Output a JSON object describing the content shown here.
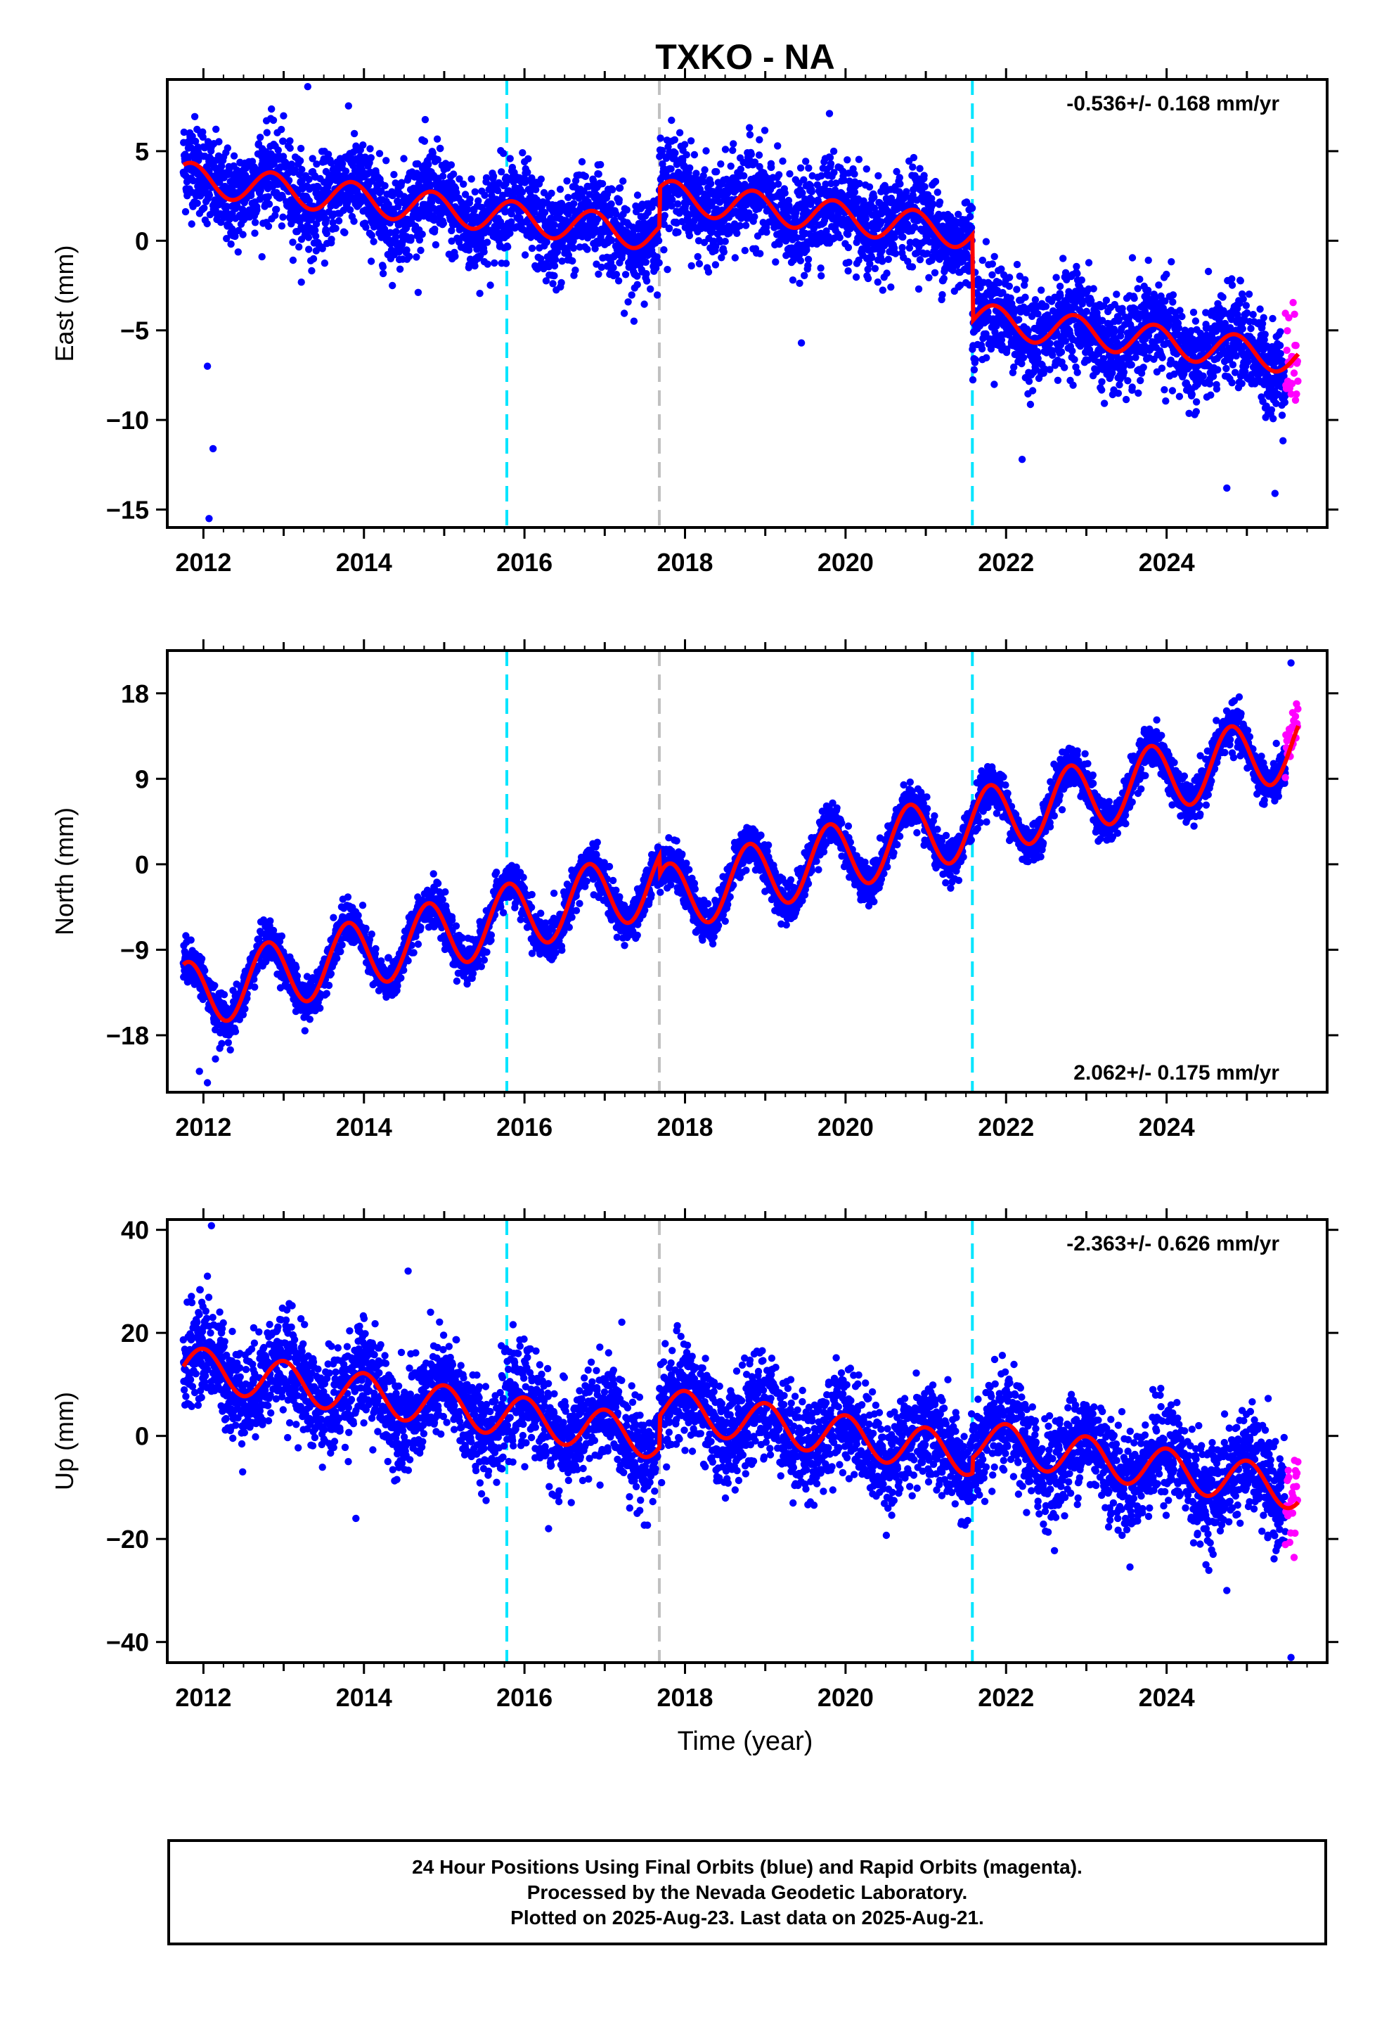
{
  "title": "TXKO - NA",
  "xlabel": "Time (year)",
  "colors": {
    "final": "#0000ff",
    "rapid": "#ff00ff",
    "model": "#ff0000",
    "equipment_change": "#00e5ff",
    "other_event": "#c0c0c0"
  },
  "footer": {
    "line1": "24 Hour Positions Using Final Orbits (blue) and Rapid Orbits (magenta).",
    "line2": "Processed by the Nevada Geodetic Laboratory.",
    "line3": "Plotted on 2025-Aug-23. Last data on 2025-Aug-21."
  },
  "chart_data": [
    {
      "type": "scatter",
      "component": "east",
      "ylabel": "East (mm)",
      "ylim": [
        -16,
        9
      ],
      "yticks": [
        -15,
        -10,
        -5,
        0,
        5
      ],
      "xlim": [
        2011.55,
        2026.0
      ],
      "xticks": [
        2012,
        2014,
        2016,
        2018,
        2020,
        2022,
        2024
      ],
      "rate_text": "-0.536+/- 0.168 mm/yr",
      "rate_position": "top-right",
      "events": [
        {
          "x": 2015.78,
          "kind": "equipment_change"
        },
        {
          "x": 2017.68,
          "kind": "other_event"
        },
        {
          "x": 2021.58,
          "kind": "equipment_change"
        }
      ],
      "model": {
        "offset": 3.5,
        "rate": -0.536,
        "seasonal_amp": 0.9,
        "phase": 0.6,
        "steps": [
          {
            "x": 2017.68,
            "dy": 2.2
          },
          {
            "x": 2021.58,
            "dy": -4.8
          }
        ]
      },
      "data_range": [
        2011.75,
        2025.48
      ],
      "rapid_range": [
        2025.48,
        2025.64
      ],
      "scatter_sigma": 1.3,
      "outliers": [
        [
          2012.07,
          -15.5
        ],
        [
          2012.12,
          -11.6
        ],
        [
          2012.05,
          -7.0
        ],
        [
          2013.3,
          8.6
        ],
        [
          2019.8,
          7.1
        ],
        [
          2019.45,
          -5.7
        ],
        [
          2022.2,
          -12.2
        ],
        [
          2024.75,
          -13.8
        ],
        [
          2025.35,
          -14.1
        ]
      ]
    },
    {
      "type": "scatter",
      "component": "north",
      "ylabel": "North (mm)",
      "ylim": [
        -24,
        22.5
      ],
      "yticks": [
        -18,
        -9,
        0,
        9,
        18
      ],
      "xlim": [
        2011.55,
        2026.0
      ],
      "xticks": [
        2012,
        2014,
        2016,
        2018,
        2020,
        2022,
        2024
      ],
      "rate_text": "2.062+/- 0.175 mm/yr",
      "rate_position": "bottom-right",
      "events": [
        {
          "x": 2015.78,
          "kind": "equipment_change"
        },
        {
          "x": 2017.68,
          "kind": "other_event"
        },
        {
          "x": 2021.58,
          "kind": "equipment_change"
        }
      ],
      "model": {
        "offset": -14.0,
        "rate": 2.062,
        "seasonal_amp": 3.6,
        "phase": 0.55,
        "steps": [
          {
            "x": 2017.68,
            "dy": -2.0
          }
        ]
      },
      "data_range": [
        2011.75,
        2025.48
      ],
      "rapid_range": [
        2025.48,
        2025.64
      ],
      "scatter_sigma": 1.1,
      "outliers": [
        [
          2011.95,
          -21.8
        ],
        [
          2012.05,
          -23.0
        ],
        [
          2012.15,
          -20.5
        ],
        [
          2025.55,
          21.2
        ]
      ]
    },
    {
      "type": "scatter",
      "component": "up",
      "ylabel": "Up (mm)",
      "ylim": [
        -44,
        42
      ],
      "yticks": [
        -40,
        -20,
        0,
        20,
        40
      ],
      "xlim": [
        2011.55,
        2026.0
      ],
      "xticks": [
        2012,
        2014,
        2016,
        2018,
        2020,
        2022,
        2024
      ],
      "rate_text": "-2.363+/- 0.626 mm/yr",
      "rate_position": "top-right",
      "events": [
        {
          "x": 2015.78,
          "kind": "equipment_change"
        },
        {
          "x": 2017.68,
          "kind": "other_event"
        },
        {
          "x": 2021.58,
          "kind": "equipment_change"
        }
      ],
      "model": {
        "offset": 13.5,
        "rate": -2.363,
        "seasonal_amp": 4.0,
        "phase": 0.75,
        "steps": [
          {
            "x": 2017.68,
            "dy": 6.0
          },
          {
            "x": 2021.58,
            "dy": 3.0
          }
        ]
      },
      "data_range": [
        2011.75,
        2025.48
      ],
      "rapid_range": [
        2025.48,
        2025.64
      ],
      "scatter_sigma": 4.8,
      "outliers": [
        [
          2012.1,
          40.8
        ],
        [
          2012.05,
          31.0
        ],
        [
          2014.55,
          32.0
        ],
        [
          2013.9,
          -16.0
        ],
        [
          2016.3,
          -18.0
        ],
        [
          2024.75,
          -30.0
        ],
        [
          2025.55,
          -43.0
        ]
      ]
    }
  ]
}
